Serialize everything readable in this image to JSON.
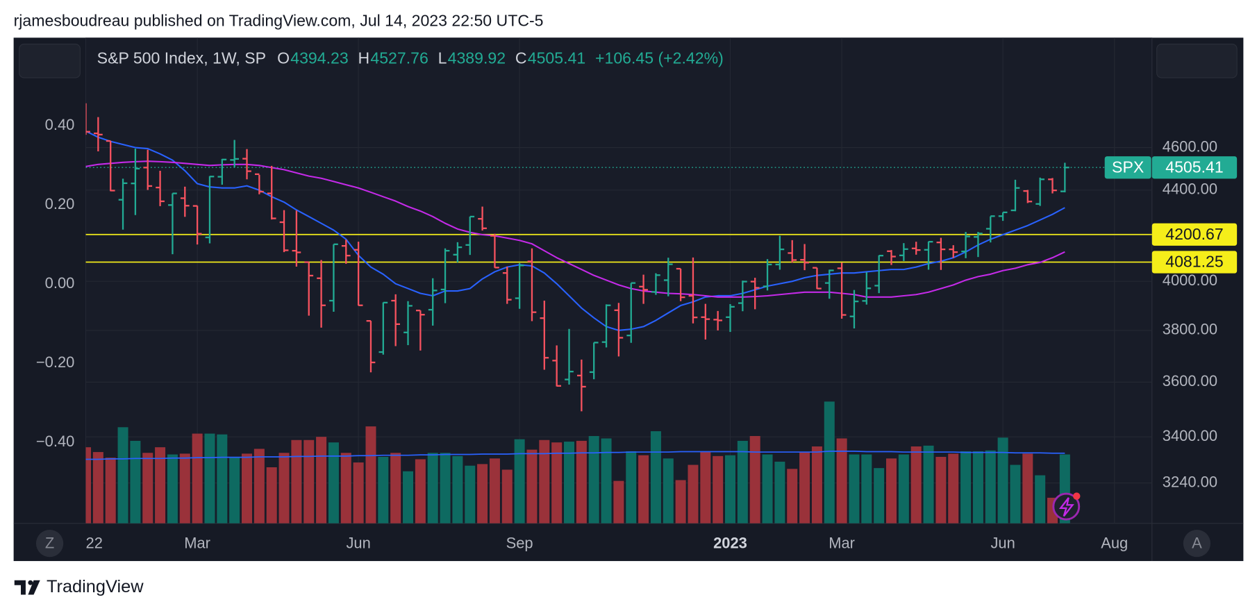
{
  "page": {
    "publisher": "rjamesboudreau published on TradingView.com, Jul 14, 2023 22:50 UTC-5",
    "brand": "TradingView",
    "controls": [
      "Z",
      "A"
    ]
  },
  "chart_data": {
    "type": "ohlc",
    "title": "S&P 500 Index, 1W, SP",
    "field_labels": {
      "open": "O",
      "high": "H",
      "low": "L",
      "close": "C"
    },
    "change_label": "+106.45 (+2.42%)",
    "symbol": "SPX",
    "categories": [
      "22",
      null,
      null,
      null,
      null,
      null,
      null,
      null,
      null,
      "Mar",
      null,
      null,
      null,
      null,
      null,
      null,
      null,
      null,
      null,
      null,
      null,
      null,
      "Jun",
      null,
      null,
      null,
      null,
      null,
      null,
      null,
      null,
      null,
      null,
      null,
      null,
      "Sep",
      null,
      null,
      null,
      null,
      null,
      null,
      null,
      null,
      null,
      null,
      null,
      null,
      null,
      null,
      null,
      null,
      "2023",
      null,
      null,
      null,
      null,
      null,
      null,
      null,
      null,
      "Mar",
      null,
      null,
      null,
      null,
      null,
      null,
      null,
      null,
      null,
      null,
      null,
      null,
      "Jun",
      null,
      null,
      null,
      null,
      null,
      null,
      null,
      null,
      "Aug"
    ],
    "open": [
      4778,
      4669,
      4632,
      4356,
      4431,
      4505,
      4412,
      4332,
      4363,
      4328,
      4188,
      4462,
      4541,
      4547,
      4474,
      4385,
      4255,
      4130,
      4081,
      4013,
      3920,
      4151,
      4134,
      3838,
      3715,
      3920,
      3792,
      3880,
      3883,
      3966,
      4113,
      4155,
      4270,
      4195,
      4035,
      3930,
      4084,
      3849,
      3682,
      3610,
      3625,
      3638,
      3754,
      3881,
      3780,
      3978,
      3956,
      4005,
      4053,
      3940,
      3853,
      3843,
      3853,
      3910,
      3999,
      3979,
      4071,
      4120,
      4091,
      4057,
      3993,
      4055,
      3856,
      3919,
      3982,
      4128,
      4110,
      4140,
      4134,
      4166,
      4136,
      4127,
      4190,
      4226,
      4282,
      4308,
      4396,
      4337,
      4450,
      4394.23,
      null,
      null,
      null,
      null
    ],
    "high": [
      4818,
      4749,
      4632,
      4453,
      4595,
      4590,
      4490,
      4385,
      4416,
      4329,
      4465,
      4546,
      4637,
      4593,
      4471,
      4513,
      4309,
      4307,
      4081,
      4090,
      4158,
      4178,
      4169,
      3838,
      3913,
      3946,
      3918,
      3880,
      4013,
      4140,
      4167,
      4280,
      4325,
      4204,
      4062,
      4077,
      4140,
      3920,
      3741,
      3806,
      3686,
      3752,
      3905,
      3911,
      3993,
      4028,
      4034,
      4100,
      4053,
      4101,
      3907,
      3878,
      3906,
      4003,
      4015,
      4094,
      4195,
      4176,
      4159,
      4057,
      4049,
      4079,
      3964,
      4039,
      4110,
      4133,
      4163,
      4169,
      4170,
      4186,
      4154,
      4212,
      4212,
      4281,
      4299,
      4448,
      4401,
      4458,
      4456,
      4527.76,
      null,
      null,
      null,
      null
    ],
    "low": [
      4662,
      4582,
      4395,
      4222,
      4287,
      4401,
      4327,
      4115,
      4279,
      4157,
      4162,
      4425,
      4507,
      4450,
      4381,
      4267,
      4124,
      4062,
      3859,
      3811,
      3875,
      4074,
      3900,
      3637,
      3705,
      3738,
      3742,
      3721,
      3819,
      3910,
      4080,
      4112,
      4218,
      4057,
      3907,
      3887,
      3837,
      3647,
      3584,
      3591,
      3492,
      3611,
      3733,
      3698,
      3751,
      3907,
      3944,
      3938,
      3918,
      3828,
      3764,
      3800,
      3794,
      3877,
      3885,
      3962,
      4049,
      4079,
      4047,
      3968,
      3928,
      3847,
      3808,
      3904,
      3951,
      4069,
      4086,
      4113,
      4049,
      4048,
      4099,
      4098,
      4103,
      4166,
      4261,
      4304,
      4341,
      4328,
      4385,
      4389.92,
      null,
      null,
      null,
      null
    ],
    "close": [
      4677,
      4663,
      4398,
      4432,
      4500,
      4419,
      4349,
      4385,
      4329,
      4204,
      4463,
      4543,
      4546,
      4488,
      4393,
      4272,
      4132,
      4123,
      4024,
      3901,
      4158,
      4109,
      3901,
      3675,
      3912,
      3825,
      3899,
      3863,
      3962,
      4130,
      4145,
      4280,
      4228,
      4058,
      3924,
      4067,
      3873,
      3693,
      3586,
      3640,
      3583,
      3752,
      3901,
      3771,
      3993,
      3965,
      4026,
      4072,
      3934,
      3852,
      3845,
      3840,
      3895,
      3999,
      3973,
      4071,
      4136,
      4090,
      4079,
      3970,
      4046,
      3862,
      3917,
      3971,
      4109,
      4105,
      4137,
      4133,
      4169,
      4136,
      4124,
      4192,
      4205,
      4282,
      4299,
      4410,
      4348,
      4450,
      4399,
      4505.41,
      null,
      null,
      null,
      null
    ],
    "up_color": "#22ab94",
    "down_color": "#f7525f",
    "moving_averages": [
      {
        "color": "#2962ff",
        "values": [
          4680,
          4650,
          4630,
          4615,
          4600,
          4595,
          4570,
          4540,
          4490,
          4430,
          4415,
          4410,
          4410,
          4420,
          4400,
          4370,
          4345,
          4310,
          4280,
          4250,
          4220,
          4180,
          4110,
          4060,
          4030,
          3990,
          3970,
          3950,
          3940,
          3960,
          3960,
          3970,
          4010,
          4040,
          4060,
          4070,
          4065,
          4035,
          3990,
          3940,
          3890,
          3850,
          3815,
          3800,
          3805,
          3815,
          3840,
          3870,
          3900,
          3915,
          3935,
          3940,
          3940,
          3950,
          3965,
          3980,
          3990,
          4000,
          4015,
          4025,
          4030,
          4035,
          4035,
          4040,
          4045,
          4050,
          4050,
          4060,
          4075,
          4085,
          4100,
          4125,
          4155,
          4180,
          4200,
          4220,
          4240,
          4265,
          4290,
          4320,
          null,
          null,
          null,
          null
        ]
      },
      {
        "color": "#c42ae8",
        "values": [
          4510,
          4520,
          4525,
          4530,
          4533,
          4535,
          4533,
          4530,
          4525,
          4520,
          4515,
          4518,
          4520,
          4520,
          4515,
          4505,
          4495,
          4480,
          4465,
          4455,
          4440,
          4425,
          4410,
          4390,
          4370,
          4350,
          4325,
          4305,
          4280,
          4250,
          4225,
          4210,
          4200,
          4195,
          4185,
          4175,
          4160,
          4130,
          4100,
          4075,
          4050,
          4025,
          4005,
          3985,
          3970,
          3960,
          3955,
          3950,
          3948,
          3945,
          3940,
          3935,
          3935,
          3935,
          3937,
          3940,
          3945,
          3950,
          3955,
          3955,
          3955,
          3950,
          3945,
          3935,
          3935,
          3935,
          3940,
          3945,
          3955,
          3970,
          3985,
          4005,
          4020,
          4030,
          4045,
          4055,
          4070,
          4080,
          4100,
          4125,
          null,
          null,
          null,
          null
        ]
      }
    ],
    "levels": [
      {
        "value": 4200.67,
        "color": "#f5ee1a"
      },
      {
        "value": 4081.25,
        "color": "#f5ee1a"
      }
    ],
    "log_scale": true,
    "ylim": [
      3106,
      5160
    ],
    "yticks": [
      {
        "value": 4600,
        "label": "4600.00"
      },
      {
        "value": 4400,
        "label": "4400.00"
      },
      {
        "value": 4000,
        "label": "4000.00"
      },
      {
        "value": 3800,
        "label": "3800.00"
      },
      {
        "value": 3600,
        "label": "3600.00"
      },
      {
        "value": 3400,
        "label": "3400.00"
      },
      {
        "value": 3240,
        "label": "3240.00"
      }
    ],
    "y2lim": [
      -0.605,
      0.623
    ],
    "y2ticks": [
      {
        "value": 0.4,
        "label": "0.40"
      },
      {
        "value": 0.2,
        "label": "0.20"
      },
      {
        "value": 0,
        "label": "0.00"
      },
      {
        "value": -0.2,
        "label": "−0.20"
      },
      {
        "value": -0.4,
        "label": "−0.40"
      }
    ],
    "grid": true,
    "volume": {
      "ylim": [
        0,
        121.2
      ],
      "up_color": "#0e6a61",
      "down_color": "#9a323a",
      "average_color": "#2962ff",
      "values": [
        19.0,
        17.8,
        16.4,
        24.0,
        20.6,
        17.6,
        19.0,
        17.2,
        17.4,
        22.4,
        22.4,
        22.2,
        16.4,
        17.4,
        18.6,
        14.0,
        17.6,
        20.8,
        20.8,
        21.6,
        20.2,
        17.6,
        15.2,
        24.2,
        16.6,
        17.6,
        13.0,
        16.0,
        17.6,
        17.6,
        16.8,
        14.4,
        14.8,
        16.2,
        13.4,
        21.0,
        18.4,
        20.8,
        20.2,
        20.4,
        20.6,
        21.8,
        21.2,
        10.6,
        18.0,
        17.0,
        23.0,
        16.2,
        10.8,
        14.6,
        18.0,
        16.8,
        17.0,
        20.6,
        21.8,
        17.2,
        15.4,
        13.6,
        17.8,
        19.2,
        30.4,
        21.2,
        17.2,
        17.2,
        13.8,
        16.2,
        17.2,
        19.2,
        19.4,
        16.6,
        17.4,
        18.0,
        18.0,
        18.2,
        21.4,
        14.6,
        17.4,
        12.0,
        6.4,
        17.2,
        null,
        null,
        null,
        null
      ],
      "average": [
        16.0,
        16.0,
        16.1,
        16.1,
        16.2,
        16.2,
        16.2,
        16.3,
        16.3,
        16.4,
        16.4,
        16.5,
        16.5,
        16.5,
        16.6,
        16.6,
        16.6,
        16.7,
        16.7,
        16.8,
        16.8,
        16.8,
        16.9,
        16.9,
        17.0,
        17.0,
        17.0,
        17.1,
        17.1,
        17.2,
        17.2,
        17.2,
        17.3,
        17.3,
        17.3,
        17.4,
        17.4,
        17.4,
        17.5,
        17.5,
        17.6,
        17.6,
        17.7,
        17.7,
        17.8,
        17.8,
        17.8,
        17.8,
        17.9,
        17.9,
        17.9,
        17.9,
        17.9,
        17.9,
        17.8,
        17.8,
        17.8,
        17.8,
        17.8,
        17.8,
        18.0,
        18.0,
        18.0,
        17.9,
        17.9,
        17.9,
        17.8,
        17.8,
        17.8,
        17.8,
        17.8,
        17.7,
        17.7,
        17.7,
        17.7,
        17.6,
        17.6,
        17.6,
        17.5,
        17.5,
        null,
        null,
        null,
        null
      ]
    }
  }
}
